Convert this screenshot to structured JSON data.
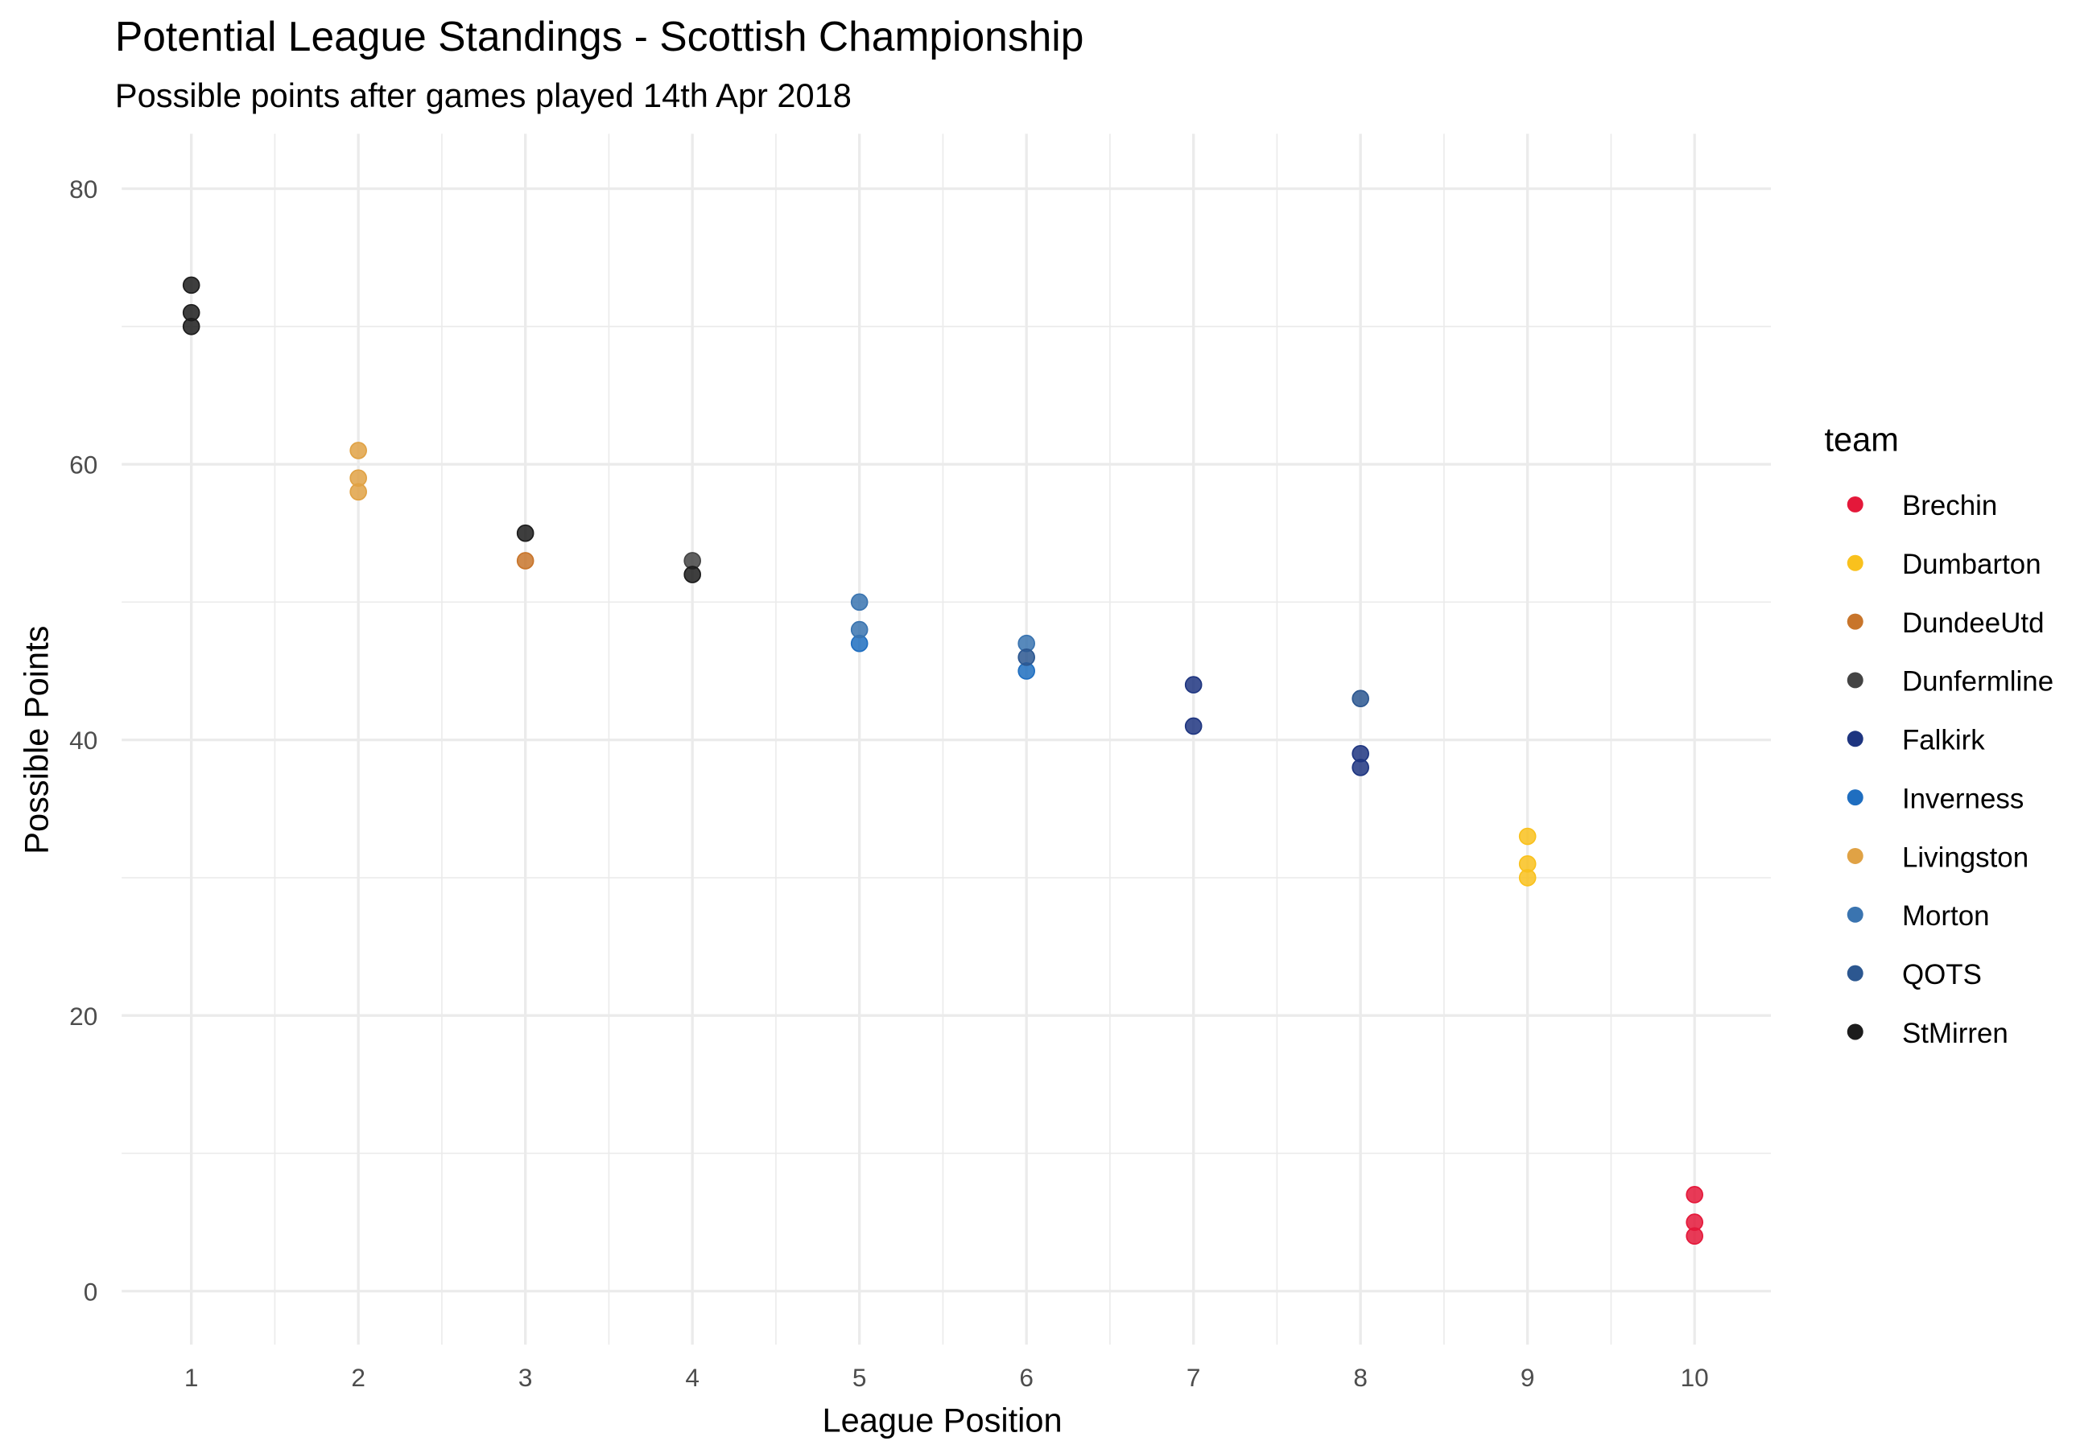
{
  "chart_data": {
    "type": "scatter",
    "title": "Potential League Standings - Scottish Championship",
    "subtitle": "Possible points after games played 14th Apr 2018",
    "xlabel": "League Position",
    "ylabel": "Possible Points",
    "xlim": [
      0.6,
      10.45
    ],
    "ylim": [
      -4,
      84
    ],
    "x_ticks": [
      1,
      2,
      3,
      4,
      5,
      6,
      7,
      8,
      9,
      10
    ],
    "y_ticks": [
      0,
      20,
      40,
      60,
      80
    ],
    "grid": true,
    "legend": {
      "title": "team",
      "placement": "right"
    },
    "series": [
      {
        "name": "Brechin",
        "color": "#e4183a",
        "points": [
          [
            10,
            7
          ],
          [
            10,
            5
          ],
          [
            10,
            4
          ]
        ]
      },
      {
        "name": "Dumbarton",
        "color": "#f9c11d",
        "points": [
          [
            9,
            33
          ],
          [
            9,
            31
          ],
          [
            9,
            30
          ]
        ]
      },
      {
        "name": "DundeeUtd",
        "color": "#c8752b",
        "points": [
          [
            3,
            53
          ]
        ]
      },
      {
        "name": "Dunfermline",
        "color": "#444444",
        "points": [
          [
            4,
            53
          ]
        ]
      },
      {
        "name": "Falkirk",
        "color": "#1e3580",
        "points": [
          [
            7,
            44
          ],
          [
            7,
            41
          ],
          [
            8,
            39
          ],
          [
            8,
            38
          ]
        ]
      },
      {
        "name": "Inverness",
        "color": "#1f6ec0",
        "points": [
          [
            5,
            47
          ],
          [
            6,
            45
          ]
        ]
      },
      {
        "name": "Livingston",
        "color": "#e0a245",
        "points": [
          [
            2,
            61
          ],
          [
            2,
            59
          ],
          [
            2,
            58
          ]
        ]
      },
      {
        "name": "Morton",
        "color": "#3a74b0",
        "points": [
          [
            5,
            50
          ],
          [
            5,
            48
          ],
          [
            6,
            47
          ]
        ]
      },
      {
        "name": "QOTS",
        "color": "#2c5790",
        "points": [
          [
            6,
            46
          ],
          [
            8,
            43
          ]
        ]
      },
      {
        "name": "StMirren",
        "color": "#1c1c1c",
        "points": [
          [
            1,
            73
          ],
          [
            1,
            71
          ],
          [
            1,
            70
          ],
          [
            3,
            55
          ],
          [
            4,
            52
          ]
        ]
      }
    ]
  }
}
